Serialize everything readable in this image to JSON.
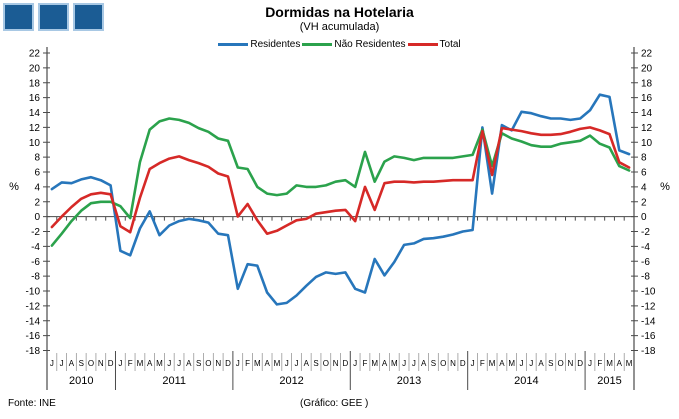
{
  "header": {
    "title": "Dormidas na Hotelaria",
    "subtitle": "(VH acumulada)"
  },
  "legend": [
    {
      "label": "Residentes",
      "color": "#2776BB"
    },
    {
      "label": "Não Residentes",
      "color": "#2BA24C"
    },
    {
      "label": "Total",
      "color": "#D62927"
    }
  ],
  "footer": {
    "source": "Fonte: INE",
    "credit": "(Gráfico: GEE )"
  },
  "decor": {
    "squares_fill": "#1B5C94",
    "squares_border": "#A8C8E4",
    "axis_color": "#4a4a4a",
    "month_sep_color": "#999999"
  },
  "chart_data": {
    "type": "line",
    "title": "Dormidas na Hotelaria",
    "subtitle": "(VH acumulada)",
    "ylabel": "%",
    "ylabel_right": "%",
    "ylim": [
      -18,
      22
    ],
    "ytick_step": 2,
    "grid": false,
    "legend_position": "top",
    "x_months": [
      "J",
      "J",
      "A",
      "S",
      "O",
      "N",
      "D",
      "J",
      "F",
      "M",
      "A",
      "M",
      "J",
      "J",
      "A",
      "S",
      "O",
      "N",
      "D",
      "J",
      "F",
      "M",
      "A",
      "M",
      "J",
      "J",
      "A",
      "S",
      "O",
      "N",
      "D",
      "J",
      "F",
      "M",
      "A",
      "M",
      "J",
      "J",
      "A",
      "S",
      "O",
      "N",
      "D",
      "J",
      "F",
      "M",
      "A",
      "M",
      "J",
      "J",
      "A",
      "S",
      "O",
      "N",
      "D",
      "J",
      "F",
      "M",
      "A",
      "M"
    ],
    "year_groups": [
      {
        "label": "2010",
        "months": 7
      },
      {
        "label": "2011",
        "months": 12
      },
      {
        "label": "2012",
        "months": 12
      },
      {
        "label": "2013",
        "months": 12
      },
      {
        "label": "2014",
        "months": 12
      },
      {
        "label": "2015",
        "months": 5
      }
    ],
    "series": [
      {
        "name": "Residentes",
        "color": "#2776BB",
        "values": [
          3.7,
          4.6,
          4.5,
          5.0,
          5.3,
          4.9,
          4.2,
          -4.6,
          -5.2,
          -1.6,
          0.7,
          -2.5,
          -1.2,
          -0.6,
          -0.3,
          -0.5,
          -0.8,
          -2.3,
          -2.5,
          -9.7,
          -6.4,
          -6.6,
          -10.2,
          -11.8,
          -11.6,
          -10.6,
          -9.3,
          -8.1,
          -7.5,
          -7.7,
          -7.5,
          -9.7,
          -10.2,
          -5.7,
          -7.9,
          -6.1,
          -3.8,
          -3.6,
          -3.0,
          -2.9,
          -2.7,
          -2.4,
          -2.0,
          -1.8,
          12.0,
          3.1,
          12.3,
          11.6,
          14.1,
          13.9,
          13.5,
          13.2,
          13.2,
          13.0,
          13.2,
          14.3,
          16.4,
          16.1,
          8.9,
          8.4
        ]
      },
      {
        "name": "Não Residentes",
        "color": "#2BA24C",
        "values": [
          -3.9,
          -2.3,
          -0.6,
          0.8,
          1.8,
          2.0,
          2.0,
          1.4,
          -0.2,
          7.3,
          11.7,
          12.8,
          13.2,
          13.0,
          12.6,
          11.9,
          11.4,
          10.5,
          10.2,
          6.6,
          6.4,
          4.0,
          3.1,
          2.9,
          3.1,
          4.2,
          4.0,
          4.0,
          4.2,
          4.7,
          4.9,
          4.0,
          8.7,
          4.7,
          7.4,
          8.1,
          7.9,
          7.6,
          7.9,
          7.9,
          7.9,
          7.9,
          8.1,
          8.3,
          11.7,
          6.8,
          11.2,
          10.5,
          10.1,
          9.6,
          9.4,
          9.4,
          9.8,
          10.0,
          10.2,
          10.9,
          9.8,
          9.3,
          6.8,
          6.2
        ]
      },
      {
        "name": "Total",
        "color": "#D62927",
        "values": [
          -1.4,
          0.0,
          1.3,
          2.4,
          3.0,
          3.2,
          3.0,
          -1.3,
          -2.1,
          2.5,
          6.4,
          7.2,
          7.8,
          8.1,
          7.6,
          7.2,
          6.7,
          5.8,
          5.4,
          0.0,
          1.7,
          -0.5,
          -2.3,
          -1.9,
          -1.2,
          -0.5,
          -0.3,
          0.4,
          0.6,
          0.8,
          0.9,
          -0.6,
          4.0,
          0.9,
          4.5,
          4.7,
          4.7,
          4.6,
          4.7,
          4.7,
          4.8,
          4.9,
          4.9,
          4.9,
          11.5,
          5.6,
          11.9,
          11.7,
          11.5,
          11.2,
          11.0,
          11.0,
          11.1,
          11.4,
          11.8,
          12.0,
          11.6,
          11.1,
          7.3,
          6.6
        ]
      }
    ]
  }
}
